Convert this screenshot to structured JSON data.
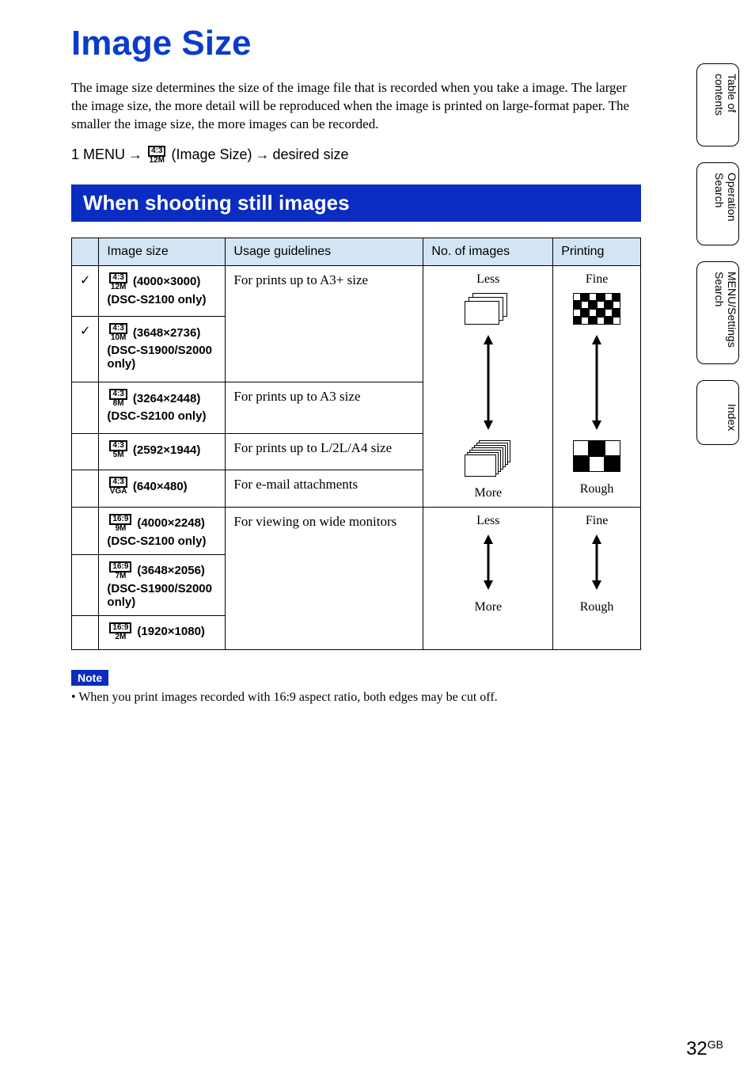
{
  "title": "Image Size",
  "intro": "The image size determines the size of the image file that is recorded when you take a image. The larger the image size, the more detail will be reproduced when the image is printed on large-format paper. The smaller the image size, the more images can be recorded.",
  "step_prefix": "1  MENU",
  "step_middle": "(Image Size)",
  "step_suffix": "desired size",
  "badge_main_ratio": "4:3",
  "badge_main_sub": "12M",
  "section_header": "When shooting still images",
  "headers": {
    "size": "Image size",
    "usage": "Usage guidelines",
    "num": "No. of images",
    "print": "Printing"
  },
  "rows_4_3": [
    {
      "check": true,
      "ratio": "4:3",
      "sub": "12M",
      "res": "(4000×3000)",
      "model": "(DSC-S2100 only)",
      "usage": "For prints up to A3+ size"
    },
    {
      "check": true,
      "ratio": "4:3",
      "sub": "10M",
      "res": "(3648×2736)",
      "model": "(DSC-S1900/S2000 only)",
      "usage": ""
    },
    {
      "check": false,
      "ratio": "4:3",
      "sub": "8M",
      "res": "(3264×2448)",
      "model": "(DSC-S2100 only)",
      "usage": "For prints up to A3 size"
    },
    {
      "check": false,
      "ratio": "4:3",
      "sub": "5M",
      "res": "(2592×1944)",
      "model": "",
      "usage": "For prints up to L/2L/A4 size"
    },
    {
      "check": false,
      "ratio": "4:3",
      "sub": "VGA",
      "res": "(640×480)",
      "model": "",
      "usage": "For e-mail attachments"
    }
  ],
  "rows_16_9": [
    {
      "check": false,
      "ratio": "16:9",
      "sub": "9M",
      "res": "(4000×2248)",
      "model": "(DSC-S2100 only)",
      "usage": "For viewing on wide monitors"
    },
    {
      "check": false,
      "ratio": "16:9",
      "sub": "7M",
      "res": "(3648×2056)",
      "model": "(DSC-S1900/S2000 only)",
      "usage": ""
    },
    {
      "check": false,
      "ratio": "16:9",
      "sub": "2M",
      "res": "(1920×1080)",
      "model": "",
      "usage": ""
    }
  ],
  "diagram": {
    "less": "Less",
    "more": "More",
    "fine": "Fine",
    "rough": "Rough"
  },
  "note_label": "Note",
  "note_text": "•  When you print images recorded with 16:9 aspect ratio, both edges may be cut off.",
  "tabs": [
    "Table of contents",
    "Operation Search",
    "MENU/Settings Search",
    "Index"
  ],
  "page_number": "32",
  "page_suffix": "GB",
  "colors": {
    "accent": "#0a2cc0",
    "title": "#0a3ccc",
    "header_bg": "#d3e4f4"
  }
}
